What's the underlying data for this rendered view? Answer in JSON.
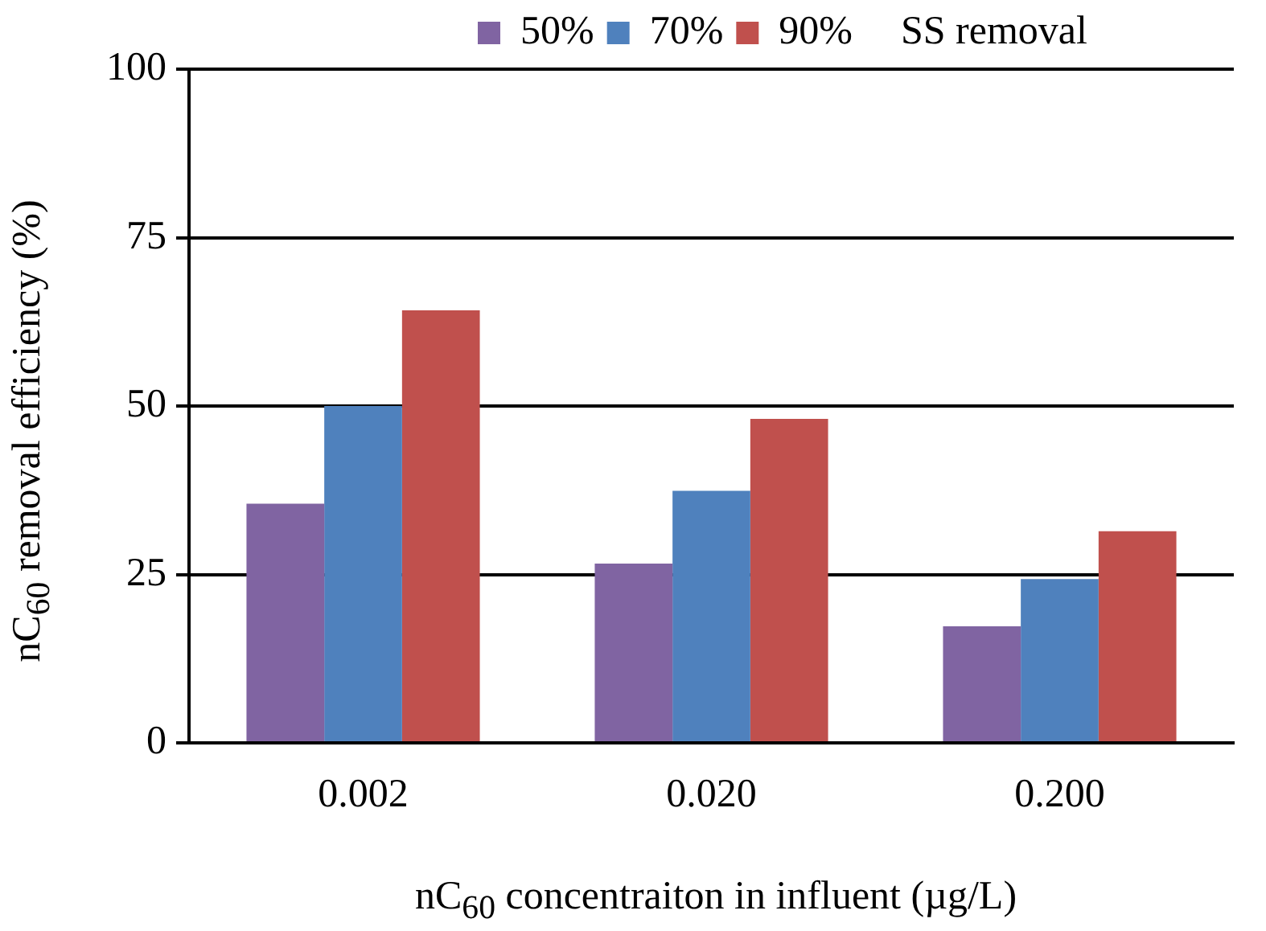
{
  "chart_data": {
    "type": "bar",
    "xlabel": "nC$_{60}$ concentraiton in influent (µg/L)",
    "ylabel": "nC$_{60}$ removal efficiency  (%)",
    "legend_title": "SS removal",
    "categories": [
      "0.002",
      "0.020",
      "0.200"
    ],
    "series": [
      {
        "name": "50%",
        "color": "#8064a2",
        "values": [
          35.5,
          26.6,
          17.3
        ]
      },
      {
        "name": "70%",
        "color": "#4f81bd",
        "values": [
          50,
          37.4,
          24.3
        ]
      },
      {
        "name": "90%",
        "color": "#c0504d",
        "values": [
          64.2,
          48.1,
          31.4
        ]
      }
    ],
    "ylim": [
      0,
      100
    ],
    "yticks": [
      0,
      25,
      50,
      75,
      100
    ],
    "grid": "y",
    "legend": "top"
  }
}
